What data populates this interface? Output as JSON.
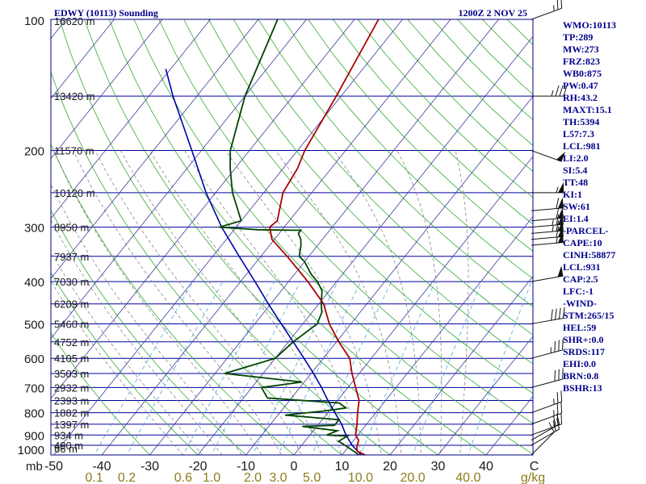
{
  "header": {
    "title": "EDWY (10113) Sounding",
    "time": "1200Z  2 NOV 25"
  },
  "stats": [
    "WMO:10113",
    "TP:289",
    "MW:273",
    "FRZ:823",
    "WB0:875",
    "PW:0.47",
    "RH:43.2",
    "MAXT:15.1",
    "TH:5394",
    "L57:7.3",
    "LCL:981",
    "LI:2.0",
    "SI:5.4",
    "TT:48",
    "KI:1",
    "SW:61",
    "EI:1.4",
    "-PARCEL-",
    "CAPE:10",
    "CINH:58877",
    "LCL:931",
    "CAP:2.5",
    "LFC:-1",
    "-WIND-",
    "STM:265/15",
    "HEL:59",
    "SHR+:0.0",
    "SRDS:117",
    "EHI:0.0",
    "BRN:0.8",
    "BSHR:13"
  ],
  "colors": {
    "isobar": "#0000a0",
    "isotherm": "#3a3aa0",
    "dry_adiabat": "#33aa33",
    "moist_adiabat": "#888888",
    "mixing_ratio": "#4aa8d8",
    "temperature": "#aa0000",
    "dewpoint": "#004400",
    "parcel": "#0000aa",
    "wind": "#111111"
  },
  "chart_data": {
    "type": "skew-t",
    "title": "EDWY (10113) Sounding",
    "time": "1200Z  2 NOV 25",
    "pressure_unit_label": "mb",
    "mixing_ratio_unit_label": "g/kg",
    "pressure_ticks": [
      100,
      200,
      300,
      400,
      500,
      600,
      700,
      800,
      900,
      1000
    ],
    "pressure_tick_labels": [
      "100",
      "200",
      "300",
      "400",
      "500",
      "600",
      "700",
      "800",
      "900",
      "1000"
    ],
    "temperature_ticks": [
      -50,
      -40,
      -30,
      -20,
      -10,
      0,
      10,
      20,
      30,
      40,
      50
    ],
    "temperature_tick_labels": [
      "-50",
      "-40",
      "-30",
      "-20",
      "-10",
      "0",
      "10",
      "20",
      "30",
      "40",
      "C"
    ],
    "mixing_ratio_ticks": [
      0.1,
      0.2,
      0.6,
      1.0,
      2.0,
      3.0,
      5.0,
      10.0,
      20.0,
      40.0
    ],
    "mixing_ratio_tick_labels": [
      "0.1",
      "0.2",
      "0.6",
      "1.0",
      "2.0",
      "3.0",
      "5.0",
      "10.0",
      "20.0",
      "40.0"
    ],
    "height_levels": [
      {
        "p": 100,
        "label": "16620 m"
      },
      {
        "p": 150,
        "label": "13420 m"
      },
      {
        "p": 200,
        "label": "11570 m"
      },
      {
        "p": 250,
        "label": "10120 m"
      },
      {
        "p": 300,
        "label": "8950 m"
      },
      {
        "p": 350,
        "label": "7937 m"
      },
      {
        "p": 400,
        "label": "7030 m"
      },
      {
        "p": 450,
        "label": "6209 m"
      },
      {
        "p": 500,
        "label": "5460 m"
      },
      {
        "p": 550,
        "label": "4752 m"
      },
      {
        "p": 600,
        "label": "4105 m"
      },
      {
        "p": 650,
        "label": "3503 m"
      },
      {
        "p": 700,
        "label": "2932 m"
      },
      {
        "p": 750,
        "label": "2393 m"
      },
      {
        "p": 800,
        "label": "1882 m"
      },
      {
        "p": 850,
        "label": "1397 m"
      },
      {
        "p": 900,
        "label": "934 m"
      },
      {
        "p": 950,
        "label": "490 m"
      },
      {
        "p": 1000,
        "label": "66 m"
      }
    ],
    "temperature_profile": [
      [
        1000,
        14.8
      ],
      [
        980,
        12.5
      ],
      [
        960,
        11.8
      ],
      [
        925,
        11.0
      ],
      [
        900,
        9.5
      ],
      [
        850,
        8.0
      ],
      [
        800,
        6.2
      ],
      [
        750,
        4.5
      ],
      [
        700,
        1.6
      ],
      [
        650,
        -1.5
      ],
      [
        600,
        -4.5
      ],
      [
        550,
        -9.5
      ],
      [
        500,
        -14.5
      ],
      [
        450,
        -19.0
      ],
      [
        400,
        -26.0
      ],
      [
        350,
        -34.5
      ],
      [
        320,
        -40.5
      ],
      [
        300,
        -43.0
      ],
      [
        290,
        -42.5
      ],
      [
        250,
        -46.0
      ],
      [
        220,
        -47.0
      ],
      [
        200,
        -48.5
      ],
      [
        150,
        -51.0
      ],
      [
        100,
        -55.0
      ]
    ],
    "dewpoint_profile": [
      [
        1000,
        13.5
      ],
      [
        980,
        11.8
      ],
      [
        950,
        9.0
      ],
      [
        930,
        7.0
      ],
      [
        905,
        8.0
      ],
      [
        900,
        3.5
      ],
      [
        880,
        5.0
      ],
      [
        860,
        -3.0
      ],
      [
        855,
        3.5
      ],
      [
        830,
        3.5
      ],
      [
        810,
        -8.5
      ],
      [
        790,
        0.0
      ],
      [
        780,
        3.0
      ],
      [
        760,
        0.8
      ],
      [
        740,
        -15.0
      ],
      [
        700,
        -18.0
      ],
      [
        680,
        -10.5
      ],
      [
        650,
        -28.0
      ],
      [
        600,
        -20.0
      ],
      [
        550,
        -19.0
      ],
      [
        500,
        -17.0
      ],
      [
        470,
        -18.0
      ],
      [
        450,
        -19.5
      ],
      [
        420,
        -21.5
      ],
      [
        400,
        -24.0
      ],
      [
        385,
        -26.5
      ],
      [
        360,
        -30.0
      ],
      [
        350,
        -32.0
      ],
      [
        330,
        -33.5
      ],
      [
        320,
        -34.5
      ],
      [
        310,
        -36.0
      ],
      [
        305,
        -36.0
      ],
      [
        304,
        -45.0
      ],
      [
        300,
        -53.5
      ],
      [
        290,
        -50.0
      ],
      [
        250,
        -56.5
      ],
      [
        220,
        -61.0
      ],
      [
        200,
        -64.0
      ],
      [
        150,
        -70.0
      ],
      [
        100,
        -76.0
      ]
    ],
    "parcel_profile": [
      [
        1000,
        14.0
      ],
      [
        950,
        10.5
      ],
      [
        900,
        7.5
      ],
      [
        850,
        4.8
      ],
      [
        800,
        1.5
      ],
      [
        750,
        -2.0
      ],
      [
        700,
        -5.5
      ],
      [
        650,
        -9.5
      ],
      [
        600,
        -14.0
      ],
      [
        550,
        -19.0
      ],
      [
        500,
        -24.5
      ],
      [
        450,
        -30.5
      ],
      [
        400,
        -37.0
      ],
      [
        350,
        -44.5
      ],
      [
        300,
        -53.0
      ],
      [
        250,
        -62.0
      ],
      [
        200,
        -72.0
      ],
      [
        150,
        -85.0
      ],
      [
        130,
        -91.0
      ]
    ],
    "wind_barbs": [
      {
        "p": 1000,
        "dir": 225,
        "speed_kt": 10
      },
      {
        "p": 950,
        "dir": 240,
        "speed_kt": 20
      },
      {
        "p": 925,
        "dir": 240,
        "speed_kt": 20
      },
      {
        "p": 900,
        "dir": 250,
        "speed_kt": 25
      },
      {
        "p": 850,
        "dir": 250,
        "speed_kt": 25
      },
      {
        "p": 800,
        "dir": 250,
        "speed_kt": 25
      },
      {
        "p": 700,
        "dir": 255,
        "speed_kt": 30
      },
      {
        "p": 600,
        "dir": 255,
        "speed_kt": 35
      },
      {
        "p": 500,
        "dir": 260,
        "speed_kt": 40
      },
      {
        "p": 400,
        "dir": 260,
        "speed_kt": 50
      },
      {
        "p": 330,
        "dir": 265,
        "speed_kt": 55
      },
      {
        "p": 320,
        "dir": 265,
        "speed_kt": 60
      },
      {
        "p": 310,
        "dir": 265,
        "speed_kt": 65
      },
      {
        "p": 300,
        "dir": 265,
        "speed_kt": 65
      },
      {
        "p": 290,
        "dir": 265,
        "speed_kt": 60
      },
      {
        "p": 275,
        "dir": 265,
        "speed_kt": 60
      },
      {
        "p": 250,
        "dir": 270,
        "speed_kt": 55
      },
      {
        "p": 200,
        "dir": 290,
        "speed_kt": 50
      },
      {
        "p": 150,
        "dir": 270,
        "speed_kt": 35
      },
      {
        "p": 100,
        "dir": 250,
        "speed_kt": 25
      }
    ]
  }
}
